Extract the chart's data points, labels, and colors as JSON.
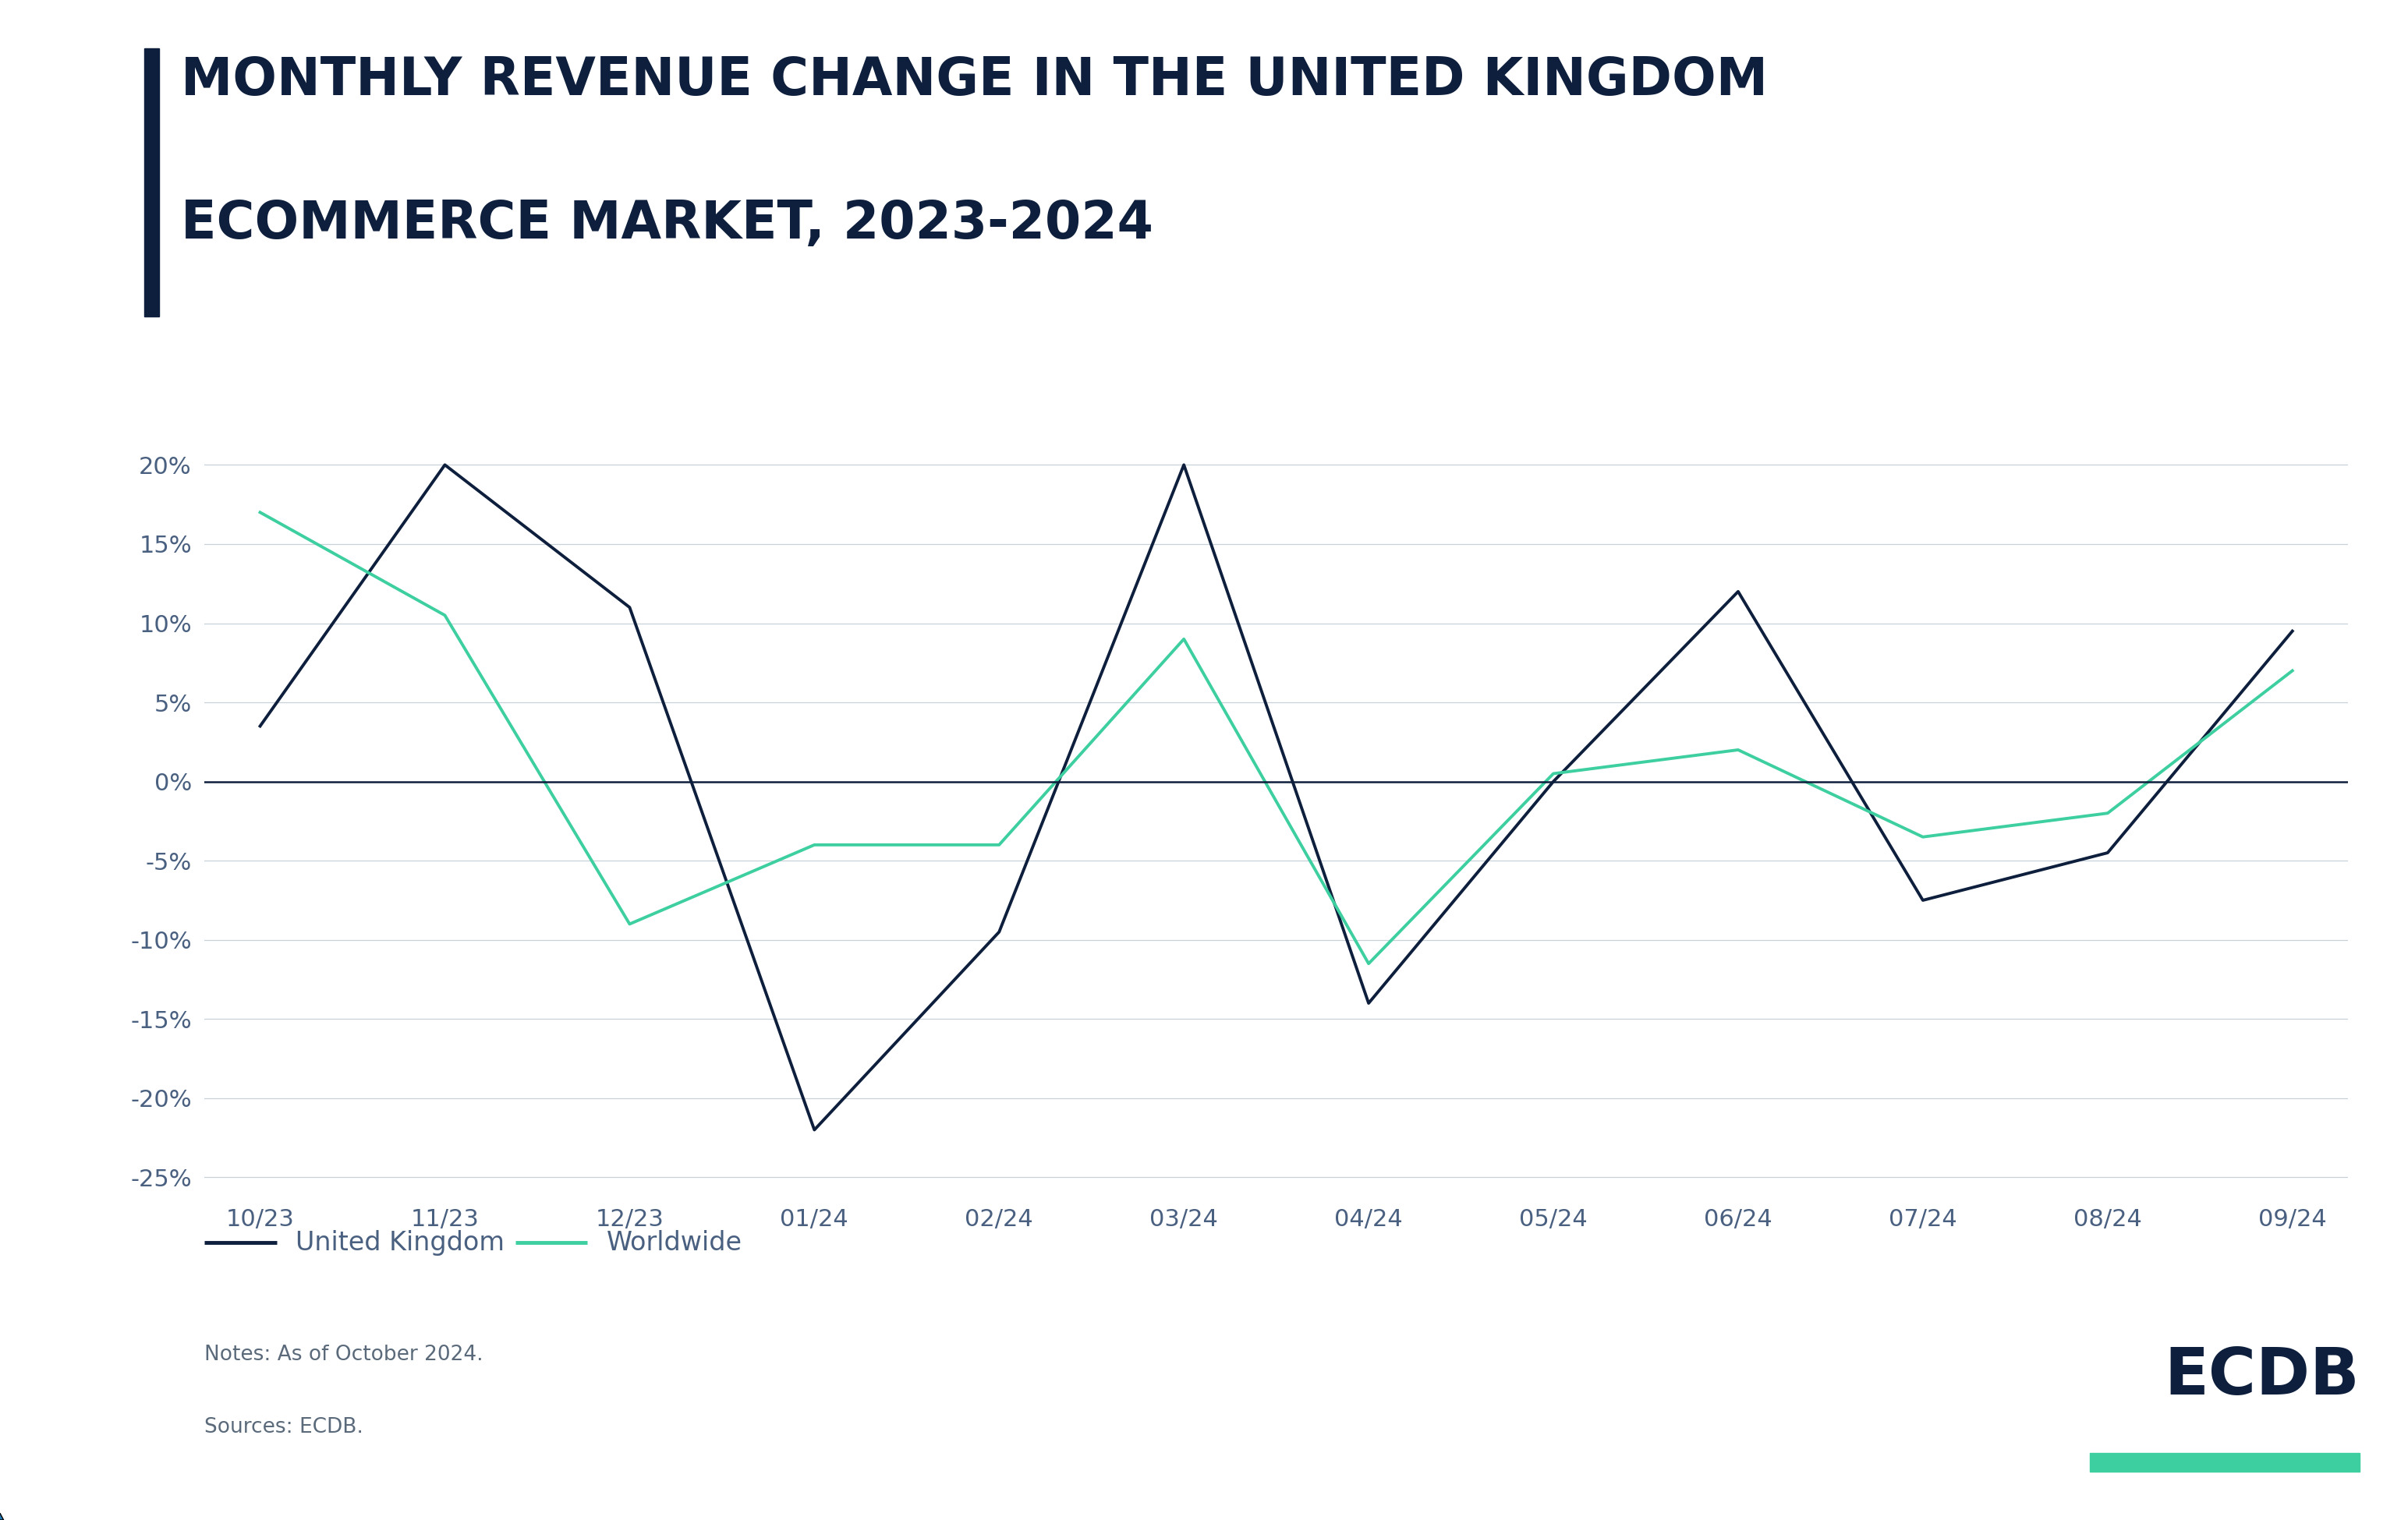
{
  "title_line1": "MONTHLY REVENUE CHANGE IN THE UNITED KINGDOM",
  "title_line2": "ECOMMERCE MARKET, 2023-2024",
  "title_color": "#0d1f3c",
  "accent_bar_color": "#0d1f3c",
  "x_labels": [
    "10/23",
    "11/23",
    "12/23",
    "01/24",
    "02/24",
    "03/24",
    "04/24",
    "05/24",
    "06/24",
    "07/24",
    "08/24",
    "09/24"
  ],
  "uk_values": [
    3.5,
    20.0,
    11.0,
    -22.0,
    -9.5,
    20.0,
    -14.0,
    0.0,
    12.0,
    -7.5,
    -4.5,
    9.5
  ],
  "ww_values": [
    17.0,
    10.5,
    -9.0,
    -4.0,
    -4.0,
    9.0,
    -11.5,
    0.5,
    2.0,
    -3.5,
    -2.0,
    7.0
  ],
  "uk_color": "#0d1f3c",
  "ww_color": "#3ecfa0",
  "ylim": [
    -26,
    22
  ],
  "yticks": [
    -25,
    -20,
    -15,
    -10,
    -5,
    0,
    5,
    10,
    15,
    20
  ],
  "zero_line_color": "#0d1f3c",
  "grid_color": "#c8d0d8",
  "background_color": "#ffffff",
  "legend_uk": "United Kingdom",
  "legend_ww": "Worldwide",
  "note_line1": "Notes: As of October 2024.",
  "note_line2": "Sources: ECDB.",
  "note_color": "#5a6a7a",
  "ecdb_text": "ECDB",
  "ecdb_color": "#0d1f3c",
  "ecdb_underline_color": "#3ecfa0",
  "line_width": 2.8,
  "tick_label_color": "#4a6080",
  "tick_fontsize": 22,
  "title_fontsize": 48,
  "legend_fontsize": 24,
  "note_fontsize": 19
}
